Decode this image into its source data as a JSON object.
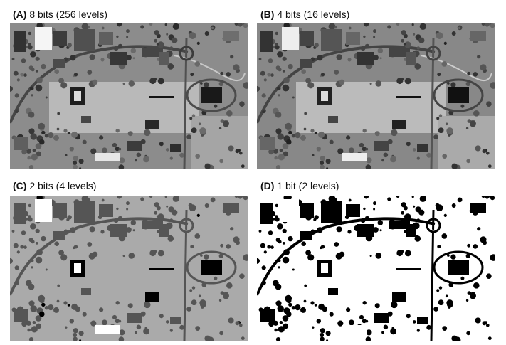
{
  "panels": [
    {
      "tag": "(A)",
      "caption": "8 bits (256 levels)",
      "levels": 256
    },
    {
      "tag": "(B)",
      "caption": "4 bits (16 levels)",
      "levels": 16
    },
    {
      "tag": "(C)",
      "caption": "2 bits (4 levels)",
      "levels": 4
    },
    {
      "tag": "(D)",
      "caption": "1 bit (2 levels)",
      "levels": 2
    }
  ]
}
